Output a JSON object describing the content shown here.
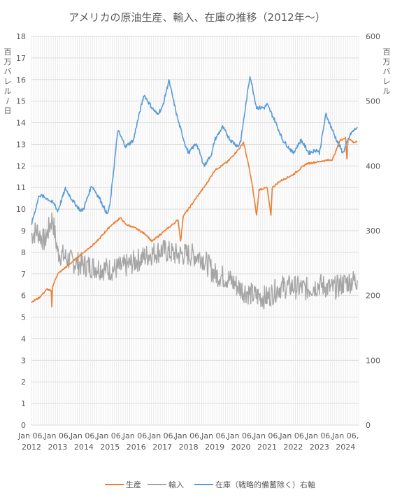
{
  "chart_data": {
    "type": "line",
    "title": "アメリカの原油生産、輸入、在庫の推移（2012年～）",
    "ylabel_left": "百万バレル/日",
    "ylabel_right": "百万バレル",
    "ylim_left": [
      0,
      18
    ],
    "ylim_right": [
      0,
      600
    ],
    "yticks_left": [
      "0",
      "1",
      "2",
      "3",
      "4",
      "5",
      "6",
      "7",
      "8",
      "9",
      "10",
      "11",
      "12",
      "13",
      "14",
      "15",
      "16",
      "17",
      "18"
    ],
    "yticks_right": [
      "0",
      "100",
      "200",
      "300",
      "400",
      "500",
      "600"
    ],
    "x_tick_labels": [
      {
        "line1": "Jan 06,",
        "line2": "2012"
      },
      {
        "line1": "Jan 06,",
        "line2": "2013"
      },
      {
        "line1": "Jan 06,",
        "line2": "2014"
      },
      {
        "line1": "Jan 06,",
        "line2": "2015"
      },
      {
        "line1": "Jan 06,",
        "line2": "2016"
      },
      {
        "line1": "Jan 06,",
        "line2": "2017"
      },
      {
        "line1": "Jan 06,",
        "line2": "2018"
      },
      {
        "line1": "Jan 06,",
        "line2": "2019"
      },
      {
        "line1": "Jan 06,",
        "line2": "2020"
      },
      {
        "line1": "Jan 06,",
        "line2": "2021"
      },
      {
        "line1": "Jan 06,",
        "line2": "2022"
      },
      {
        "line1": "Jan 06,",
        "line2": "2023"
      },
      {
        "line1": "Jan 06,",
        "line2": "2024"
      }
    ],
    "x_range_years": [
      2012.0,
      2024.5
    ],
    "grid": true,
    "legend_position": "bottom",
    "series": [
      {
        "name": "生産",
        "axis": "left",
        "color": "#ED7D31",
        "points": [
          [
            2012.0,
            5.7
          ],
          [
            2012.3,
            5.9
          ],
          [
            2012.6,
            6.3
          ],
          [
            2012.75,
            6.2
          ],
          [
            2012.78,
            5.5
          ],
          [
            2012.8,
            6.4
          ],
          [
            2013.0,
            7.0
          ],
          [
            2013.5,
            7.5
          ],
          [
            2014.0,
            8.0
          ],
          [
            2014.5,
            8.5
          ],
          [
            2015.0,
            9.2
          ],
          [
            2015.4,
            9.6
          ],
          [
            2015.6,
            9.3
          ],
          [
            2016.0,
            9.1
          ],
          [
            2016.4,
            8.8
          ],
          [
            2016.6,
            8.5
          ],
          [
            2017.0,
            8.9
          ],
          [
            2017.3,
            9.2
          ],
          [
            2017.6,
            9.5
          ],
          [
            2017.7,
            8.5
          ],
          [
            2017.8,
            9.7
          ],
          [
            2018.0,
            10.0
          ],
          [
            2018.4,
            10.7
          ],
          [
            2018.7,
            11.2
          ],
          [
            2019.0,
            11.8
          ],
          [
            2019.5,
            12.2
          ],
          [
            2020.0,
            12.9
          ],
          [
            2020.1,
            13.1
          ],
          [
            2020.3,
            12.0
          ],
          [
            2020.45,
            11.0
          ],
          [
            2020.6,
            9.7
          ],
          [
            2020.7,
            10.9
          ],
          [
            2021.0,
            11.0
          ],
          [
            2021.15,
            9.7
          ],
          [
            2021.2,
            11.0
          ],
          [
            2021.5,
            11.3
          ],
          [
            2022.0,
            11.6
          ],
          [
            2022.5,
            12.1
          ],
          [
            2023.0,
            12.2
          ],
          [
            2023.5,
            12.3
          ],
          [
            2023.8,
            13.2
          ],
          [
            2024.0,
            13.3
          ],
          [
            2024.05,
            12.3
          ],
          [
            2024.1,
            13.3
          ],
          [
            2024.3,
            13.1
          ],
          [
            2024.45,
            13.1
          ]
        ]
      },
      {
        "name": "輸入",
        "axis": "left",
        "color": "#A5A5A5",
        "points": [
          [
            2012.0,
            8.8
          ],
          [
            2012.2,
            9.0
          ],
          [
            2012.5,
            8.5
          ],
          [
            2012.8,
            9.6
          ],
          [
            2013.0,
            8.0
          ],
          [
            2013.5,
            7.6
          ],
          [
            2014.0,
            7.4
          ],
          [
            2014.5,
            7.3
          ],
          [
            2015.0,
            7.2
          ],
          [
            2015.5,
            7.3
          ],
          [
            2016.0,
            7.6
          ],
          [
            2016.5,
            7.9
          ],
          [
            2017.0,
            8.1
          ],
          [
            2017.5,
            7.9
          ],
          [
            2018.0,
            7.9
          ],
          [
            2018.5,
            7.8
          ],
          [
            2019.0,
            7.0
          ],
          [
            2019.5,
            6.8
          ],
          [
            2020.0,
            6.3
          ],
          [
            2020.5,
            6.0
          ],
          [
            2021.0,
            5.9
          ],
          [
            2021.5,
            6.4
          ],
          [
            2022.0,
            6.4
          ],
          [
            2022.5,
            6.3
          ],
          [
            2023.0,
            6.5
          ],
          [
            2023.5,
            6.3
          ],
          [
            2024.0,
            6.6
          ],
          [
            2024.45,
            6.7
          ]
        ]
      },
      {
        "name": "在庫（戦略的備蓄除く）右軸",
        "axis": "right",
        "color": "#5B9BD5",
        "points": [
          [
            2012.0,
            310
          ],
          [
            2012.3,
            355
          ],
          [
            2012.6,
            350
          ],
          [
            2012.9,
            340
          ],
          [
            2013.0,
            330
          ],
          [
            2013.3,
            365
          ],
          [
            2013.6,
            345
          ],
          [
            2013.9,
            330
          ],
          [
            2014.0,
            335
          ],
          [
            2014.3,
            370
          ],
          [
            2014.6,
            350
          ],
          [
            2014.9,
            325
          ],
          [
            2015.0,
            340
          ],
          [
            2015.3,
            455
          ],
          [
            2015.6,
            430
          ],
          [
            2015.9,
            440
          ],
          [
            2016.0,
            460
          ],
          [
            2016.3,
            510
          ],
          [
            2016.6,
            490
          ],
          [
            2016.8,
            480
          ],
          [
            2017.0,
            490
          ],
          [
            2017.25,
            532
          ],
          [
            2017.6,
            470
          ],
          [
            2017.9,
            430
          ],
          [
            2018.0,
            420
          ],
          [
            2018.3,
            435
          ],
          [
            2018.6,
            400
          ],
          [
            2018.9,
            420
          ],
          [
            2019.0,
            440
          ],
          [
            2019.3,
            460
          ],
          [
            2019.6,
            440
          ],
          [
            2019.9,
            430
          ],
          [
            2020.0,
            440
          ],
          [
            2020.35,
            540
          ],
          [
            2020.6,
            490
          ],
          [
            2020.9,
            490
          ],
          [
            2021.0,
            495
          ],
          [
            2021.3,
            470
          ],
          [
            2021.6,
            440
          ],
          [
            2021.9,
            425
          ],
          [
            2022.0,
            420
          ],
          [
            2022.3,
            440
          ],
          [
            2022.6,
            420
          ],
          [
            2022.9,
            425
          ],
          [
            2023.0,
            420
          ],
          [
            2023.25,
            480
          ],
          [
            2023.6,
            445
          ],
          [
            2023.9,
            420
          ],
          [
            2024.0,
            430
          ],
          [
            2024.2,
            450
          ],
          [
            2024.45,
            460
          ]
        ]
      }
    ]
  }
}
